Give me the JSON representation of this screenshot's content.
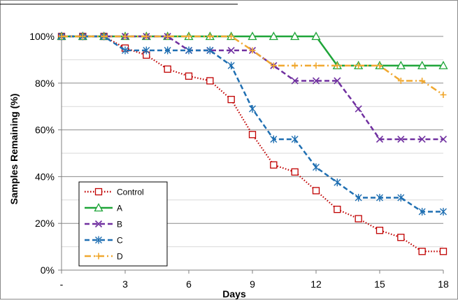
{
  "chart_data": {
    "type": "line",
    "title": "",
    "xlabel": "Days",
    "ylabel": "Samples Remaining (%)",
    "x": [
      0,
      1,
      2,
      3,
      4,
      5,
      6,
      7,
      8,
      9,
      10,
      11,
      12,
      13,
      14,
      15,
      16,
      17,
      18
    ],
    "xlim": [
      0,
      18
    ],
    "ylim": [
      0,
      100
    ],
    "x_ticks": [
      {
        "value": 0,
        "label": "-"
      },
      {
        "value": 3,
        "label": "3"
      },
      {
        "value": 6,
        "label": "6"
      },
      {
        "value": 9,
        "label": "9"
      },
      {
        "value": 12,
        "label": "12"
      },
      {
        "value": 15,
        "label": "15"
      },
      {
        "value": 18,
        "label": "18"
      }
    ],
    "y_ticks": [
      {
        "value": 0,
        "label": "0%"
      },
      {
        "value": 20,
        "label": "20%"
      },
      {
        "value": 40,
        "label": "40%"
      },
      {
        "value": 60,
        "label": "60%"
      },
      {
        "value": 80,
        "label": "80%"
      },
      {
        "value": 100,
        "label": "100%"
      }
    ],
    "y_minor_gridlines": [
      10,
      30,
      50,
      70,
      90
    ],
    "grid": true,
    "legend": "bottom-left",
    "series": [
      {
        "name": "Control",
        "color": "#c00000",
        "dash": "dotted",
        "marker": "square",
        "values": [
          100,
          100,
          100,
          95,
          92,
          86,
          83,
          81,
          73,
          58,
          45,
          42,
          34,
          26,
          22,
          17,
          14,
          8,
          8
        ]
      },
      {
        "name": "A",
        "color": "#1fa539",
        "dash": "solid",
        "marker": "triangle",
        "values": [
          100,
          100,
          100,
          100,
          100,
          100,
          100,
          100,
          100,
          100,
          100,
          100,
          100,
          87.5,
          87.5,
          87.5,
          87.5,
          87.5,
          87.5
        ]
      },
      {
        "name": "B",
        "color": "#7030a0",
        "dash": "dashed",
        "marker": "x",
        "values": [
          100,
          100,
          100,
          100,
          100,
          100,
          94,
          94,
          94,
          94,
          87.5,
          81,
          81,
          81,
          69,
          56,
          56,
          56,
          56
        ]
      },
      {
        "name": "C",
        "color": "#1f6fb2",
        "dash": "dashed",
        "marker": "star",
        "values": [
          100,
          100,
          100,
          94,
          94,
          94,
          94,
          94,
          87.5,
          69,
          56,
          56,
          44,
          37.5,
          31,
          31,
          31,
          25,
          25
        ]
      },
      {
        "name": "D",
        "color": "#f0a830",
        "dash": "dashdot",
        "marker": "plus",
        "values": [
          100,
          100,
          100,
          100,
          100,
          100,
          100,
          100,
          100,
          94,
          87.5,
          87.5,
          87.5,
          87.5,
          87.5,
          87.5,
          81,
          81,
          75
        ]
      }
    ]
  }
}
